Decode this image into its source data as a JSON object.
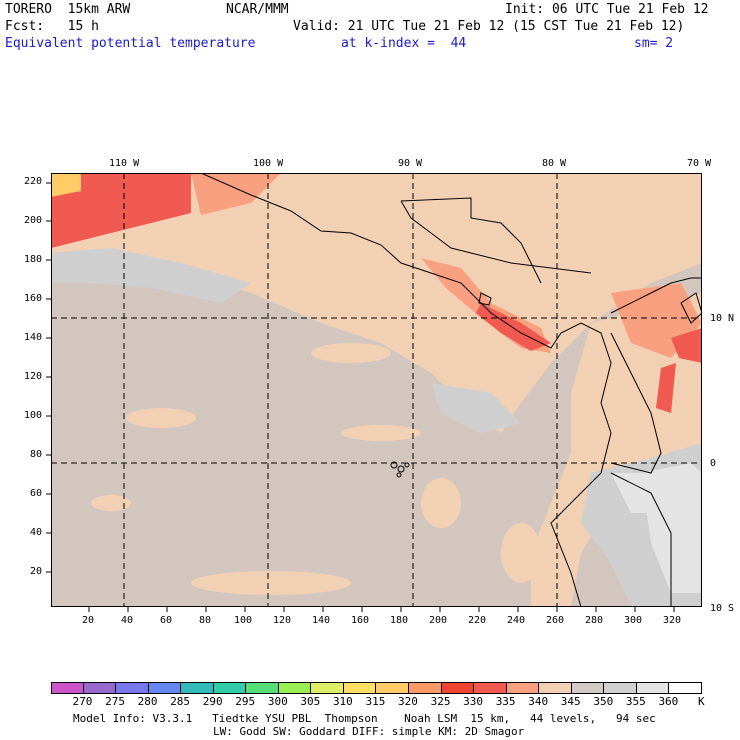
{
  "header": {
    "model": "TORERO  15km ARW",
    "org": "NCAR/MMM",
    "init": "Init: 06 UTC Tue 21 Feb 12",
    "fcst": "Fcst:   15 h",
    "valid": "Valid: 21 UTC Tue 21 Feb 12 (15 CST Tue 21 Feb 12)",
    "field": "Equivalent potential temperature",
    "level": "at k-index =  44",
    "smooth": "sm= 2"
  },
  "map": {
    "lon_labels": [
      "110 W",
      "100 W",
      "90 W",
      "80 W",
      "70 W"
    ],
    "lat_labels": [
      "10 N",
      "0",
      "10 S"
    ],
    "y_ticks": [
      "220",
      "200",
      "180",
      "160",
      "140",
      "120",
      "100",
      "80",
      "60",
      "40",
      "20"
    ],
    "x_ticks": [
      "20",
      "40",
      "60",
      "80",
      "100",
      "120",
      "140",
      "160",
      "180",
      "200",
      "220",
      "240",
      "260",
      "280",
      "300",
      "320"
    ]
  },
  "colorbar": {
    "labels": [
      "270",
      "275",
      "280",
      "285",
      "290",
      "295",
      "300",
      "305",
      "310",
      "315",
      "320",
      "325",
      "330",
      "335",
      "340",
      "345",
      "350",
      "355",
      "360"
    ],
    "unit": "K",
    "colors": [
      "#cc55cc",
      "#9966cc",
      "#7777ee",
      "#6688ee",
      "#33bbbb",
      "#33ccaa",
      "#55dd77",
      "#99ee55",
      "#ddee66",
      "#ffe066",
      "#ffcc66",
      "#ff9966",
      "#ee4433",
      "#f05a50",
      "#f8a080",
      "#f2d0b4",
      "#d2c8c4",
      "#cfcfcf",
      "#e4e4e4",
      "#ffffff"
    ]
  },
  "footer": {
    "line1": "Model Info: V3.3.1   Tiedtke YSU PBL  Thompson    Noah LSM  15 km,   44 levels,   94 sec",
    "line2": "LW: Godd SW: Goddard DIFF: simple KM: 2D Smagor"
  }
}
